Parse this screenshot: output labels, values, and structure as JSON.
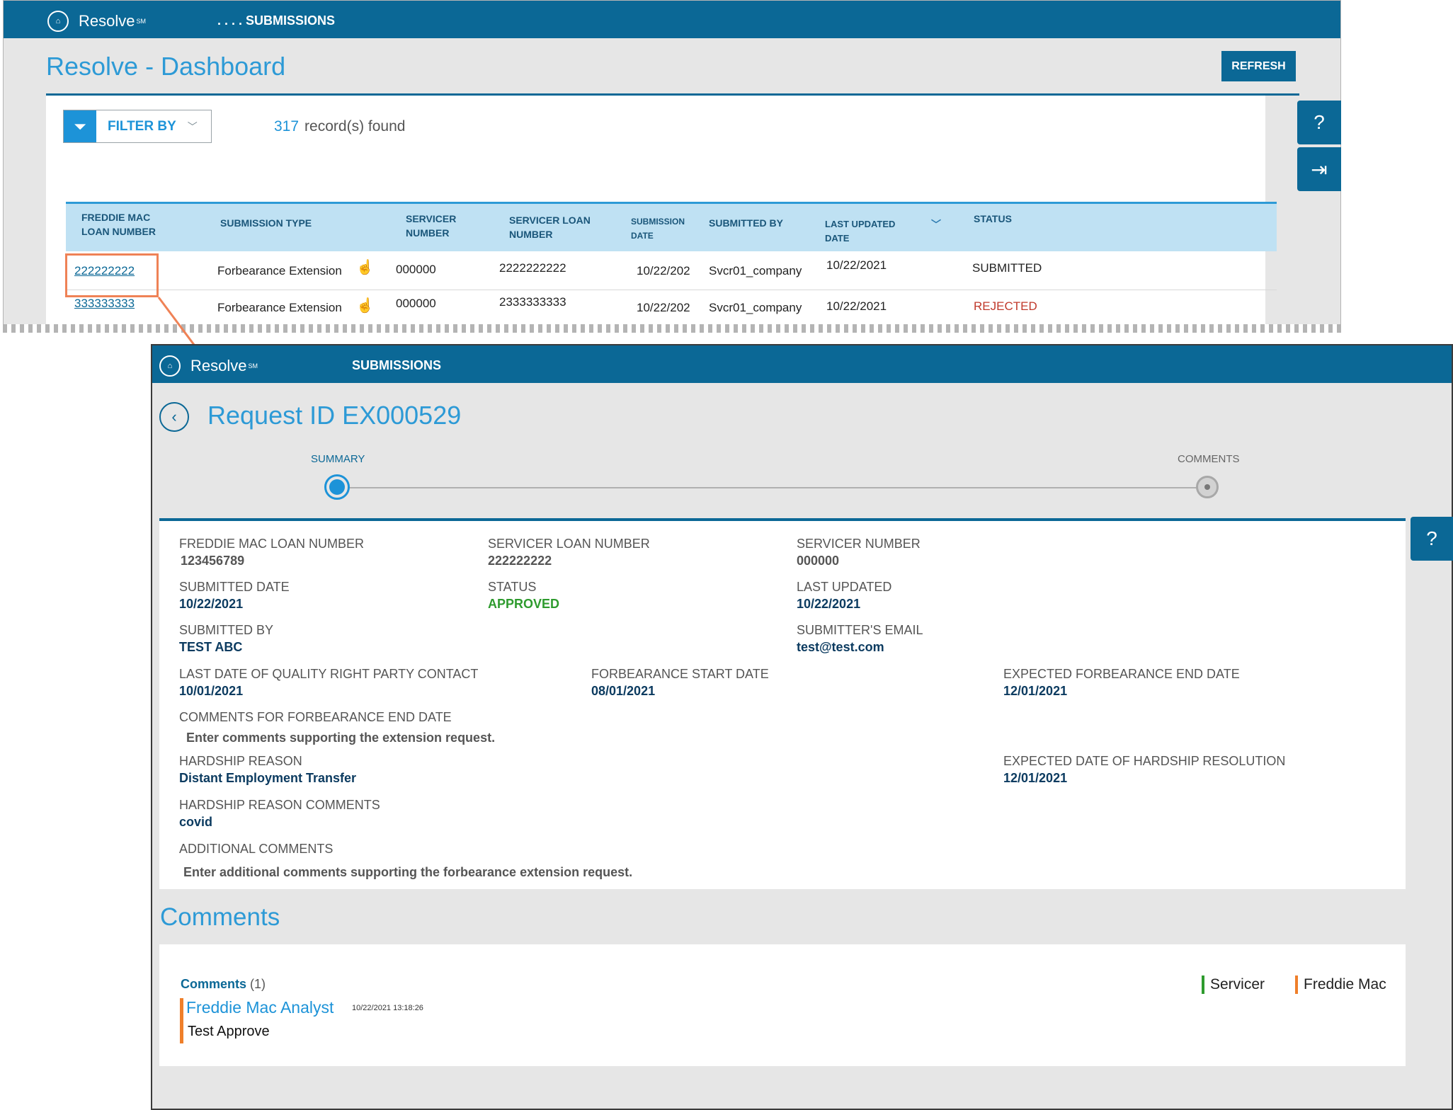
{
  "colors": {
    "brand": "#0b6896",
    "accent": "#1d93d8",
    "approved": "#2e9b2e",
    "rejected": "#c0392b",
    "freddie": "#ef7f2a",
    "servicer": "#2e9b2e"
  },
  "dashboard": {
    "brand": "Resolve",
    "brand_mark": "SM",
    "nav_label": ". . . .  SUBMISSIONS",
    "title": "Resolve - Dashboard",
    "refresh_label": "REFRESH",
    "filter_label": "FILTER BY",
    "record_count": "317",
    "record_suffix": "record(s) found",
    "columns": {
      "loan": [
        "FREDDIE MAC",
        "LOAN NUMBER"
      ],
      "type": "SUBMISSION TYPE",
      "servicer_num": [
        "SERVICER",
        "NUMBER"
      ],
      "servicer_loan": [
        "SERVICER LOAN",
        "NUMBER"
      ],
      "sub_date": [
        "SUBMISSION",
        "DATE"
      ],
      "submitted_by": "SUBMITTED BY",
      "last_updated": [
        "LAST UPDATED",
        "DATE"
      ],
      "status": "STATUS"
    },
    "rows": [
      {
        "loan": "222222222",
        "type": "Forbearance Extension",
        "servicer_num": "000000",
        "servicer_loan": "2222222222",
        "sub_date": "10/22/202",
        "submitted_by": "Svcr01_company",
        "last_updated": "10/22/2021",
        "status": "SUBMITTED"
      },
      {
        "loan": "333333333",
        "type": "Forbearance Extension",
        "servicer_num": "000000",
        "servicer_loan": "2333333333",
        "sub_date": "10/22/202",
        "submitted_by": "Svcr01_company",
        "last_updated": "10/22/2021",
        "status": "REJECTED"
      }
    ]
  },
  "detail": {
    "brand": "Resolve",
    "brand_mark": "SM",
    "nav_label": "SUBMISSIONS",
    "title": "Request ID EX000529",
    "steps": {
      "summary": "SUMMARY",
      "comments": "COMMENTS"
    },
    "fields": {
      "fm_loan": {
        "label": "FREDDIE MAC LOAN NUMBER",
        "value": "123456789"
      },
      "svc_loan": {
        "label": "SERVICER LOAN NUMBER",
        "value": "222222222"
      },
      "svc_num": {
        "label": "SERVICER NUMBER",
        "value": "000000"
      },
      "sub_date": {
        "label": "SUBMITTED DATE",
        "value": "10/22/2021"
      },
      "status": {
        "label": "STATUS",
        "value": "APPROVED"
      },
      "last_updated": {
        "label": "LAST UPDATED",
        "value": "10/22/2021"
      },
      "submitted_by": {
        "label": "SUBMITTED BY",
        "value": "TEST ABC"
      },
      "email": {
        "label": "SUBMITTER'S EMAIL",
        "value": "test@test.com"
      },
      "qrpc": {
        "label": "LAST DATE OF QUALITY RIGHT PARTY CONTACT",
        "value": "10/01/2021"
      },
      "fb_start": {
        "label": "FORBEARANCE START DATE",
        "value": "08/01/2021"
      },
      "fb_end": {
        "label": "EXPECTED FORBEARANCE END DATE",
        "value": "12/01/2021"
      },
      "fb_end_comments": {
        "label": "COMMENTS FOR FORBEARANCE END DATE",
        "value": "Enter comments supporting the extension request."
      },
      "hardship": {
        "label": "HARDSHIP REASON",
        "value": "Distant Employment Transfer"
      },
      "hardship_res": {
        "label": "EXPECTED DATE OF HARDSHIP RESOLUTION",
        "value": "12/01/2021"
      },
      "hardship_comments": {
        "label": "HARDSHIP REASON COMMENTS",
        "value": "covid"
      },
      "additional": {
        "label": "ADDITIONAL COMMENTS",
        "value": "Enter additional comments supporting the forbearance extension request."
      }
    },
    "comments": {
      "heading": "Comments",
      "title": "Comments",
      "count": "(1)",
      "legend": {
        "servicer": "Servicer",
        "freddie": "Freddie Mac"
      },
      "items": [
        {
          "author": "Freddie Mac Analyst",
          "time": "10/22/2021 13:18:26",
          "text": "Test Approve"
        }
      ]
    }
  }
}
